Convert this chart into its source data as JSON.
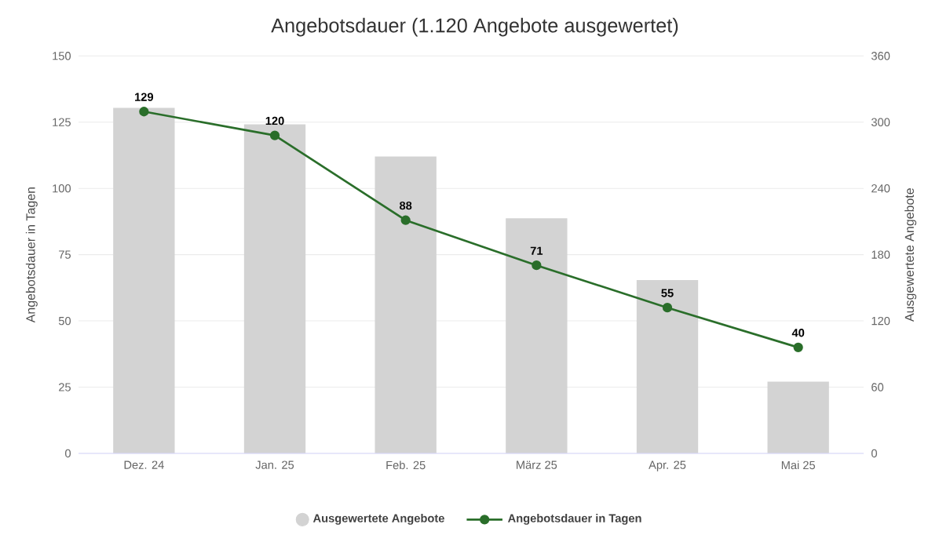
{
  "chart_data": {
    "type": "bar",
    "title": "Angebotsdauer (1.120 Angebote ausgewertet)",
    "ylabel": "Angebotsdauer in Tagen",
    "y2label": "Ausgewertete Angebote",
    "categories": [
      "Dez. 24",
      "Jan. 25",
      "Feb. 25",
      "März 25",
      "Apr. 25",
      "Mai 25"
    ],
    "series": [
      {
        "name": "Ausgewertete Angebote",
        "axis": "y2",
        "color": "#d3d3d3",
        "values": [
          313,
          298,
          269,
          213,
          157,
          65
        ]
      },
      {
        "name": "Angebotsdauer in Tagen",
        "type": "line",
        "color": "#2a6e2a",
        "marker": "circle",
        "values": [
          129,
          120,
          88,
          71,
          55,
          40
        ],
        "value_labels": [
          "129",
          "120",
          "88",
          "71",
          "55",
          "40"
        ]
      }
    ],
    "ylim": [
      0,
      150
    ],
    "yticks": [
      0,
      25,
      50,
      75,
      100,
      125,
      150
    ],
    "y2lim": [
      0,
      360
    ],
    "y2ticks": [
      0,
      60,
      120,
      180,
      240,
      300,
      360
    ],
    "grid": "y",
    "legend": "bottom"
  }
}
